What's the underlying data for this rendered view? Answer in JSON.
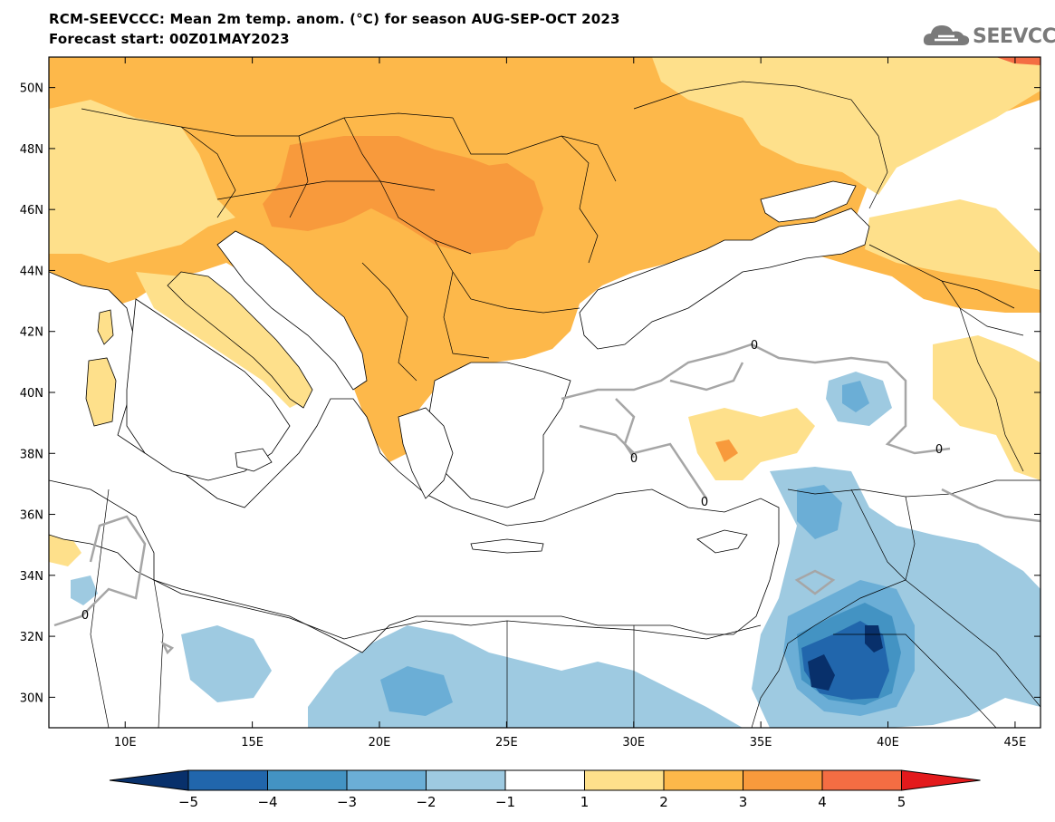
{
  "header": {
    "title_line1": "RCM-SEEVCCC: Mean 2m temp. anom. (°C) for season AUG-SEP-OCT 2023",
    "title_line2": "Forecast start: 00Z01MAY2023"
  },
  "logo": {
    "text": "SEEVCCC",
    "icon": "cloud-icon",
    "color": "#7a7a7a"
  },
  "map": {
    "lon_range": [
      7,
      46
    ],
    "lat_range": [
      29,
      51
    ],
    "lon_ticks": [
      {
        "value": 10,
        "label": "10E"
      },
      {
        "value": 15,
        "label": "15E"
      },
      {
        "value": 20,
        "label": "20E"
      },
      {
        "value": 25,
        "label": "25E"
      },
      {
        "value": 30,
        "label": "30E"
      },
      {
        "value": 35,
        "label": "35E"
      },
      {
        "value": 40,
        "label": "40E"
      },
      {
        "value": 45,
        "label": "45E"
      }
    ],
    "lat_ticks": [
      {
        "value": 30,
        "label": "30N"
      },
      {
        "value": 32,
        "label": "32N"
      },
      {
        "value": 34,
        "label": "34N"
      },
      {
        "value": 36,
        "label": "36N"
      },
      {
        "value": 38,
        "label": "38N"
      },
      {
        "value": 40,
        "label": "40N"
      },
      {
        "value": 42,
        "label": "42N"
      },
      {
        "value": 44,
        "label": "44N"
      },
      {
        "value": 46,
        "label": "46N"
      },
      {
        "value": 48,
        "label": "48N"
      },
      {
        "value": 50,
        "label": "50N"
      }
    ],
    "contour_label": "0",
    "contour_color": "#a6a6a6",
    "sea_color": "#ffffff",
    "border_color": "#000000"
  },
  "colorbar": {
    "colors": [
      "#08306b",
      "#2166ac",
      "#4393c3",
      "#6baed6",
      "#9ecae1",
      "#ffffff",
      "#fee08b",
      "#fdb84a",
      "#f89a3c",
      "#f46d43",
      "#e31a1c"
    ],
    "labels": [
      "−5",
      "−4",
      "−3",
      "−2",
      "−1",
      "1",
      "2",
      "3",
      "4",
      "5"
    ]
  },
  "regions": {
    "anom_2_3": "#fdb84a",
    "anom_1_2": "#fee08b",
    "anom_3_4": "#f89a3c",
    "anom_neg1_2": "#9ecae1",
    "anom_neg2_3": "#6baed6",
    "anom_neg3_4": "#4393c3",
    "anom_neg4_5": "#2166ac",
    "anom_neg5": "#08306b"
  }
}
